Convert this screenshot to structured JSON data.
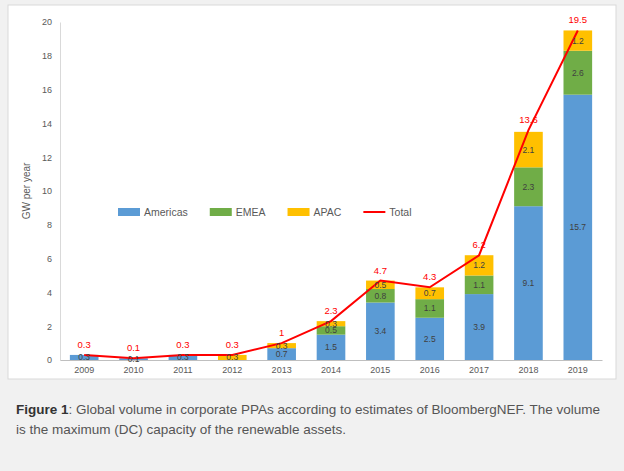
{
  "chart_data": {
    "type": "bar",
    "stacked": true,
    "data_labels": true,
    "grid": false,
    "y_label": "GW per year",
    "caption_label": "Figure 1",
    "caption": ": Global volume in corporate PPAs according to estimates of BloombergNEF. The volume is the maximum (DC) capacity of the renewable assets.",
    "categories": [
      "2009",
      "2010",
      "2011",
      "2012",
      "2013",
      "2014",
      "2015",
      "2016",
      "2017",
      "2018",
      "2019"
    ],
    "ylim": [
      0,
      20
    ],
    "yticks": [
      0,
      2,
      4,
      6,
      8,
      10,
      12,
      14,
      16,
      18,
      20
    ],
    "legend": "left",
    "series": [
      {
        "name": "Americas",
        "type": "bar",
        "color": "#5b9bd5",
        "values": [
          0.3,
          0.1,
          0.3,
          null,
          0.7,
          1.5,
          3.4,
          2.5,
          3.9,
          9.1,
          15.7
        ]
      },
      {
        "name": "EMEA",
        "type": "bar",
        "color": "#70ad47",
        "values": [
          null,
          null,
          null,
          null,
          null,
          0.5,
          0.8,
          1.1,
          1.1,
          2.3,
          2.6
        ]
      },
      {
        "name": "APAC",
        "type": "bar",
        "color": "#ffc000",
        "values": [
          null,
          null,
          null,
          0.3,
          0.3,
          0.3,
          0.5,
          0.7,
          1.2,
          2.1,
          1.2
        ]
      },
      {
        "name": "Total",
        "type": "line",
        "color": "#ff0000",
        "values": [
          0.3,
          0.1,
          0.3,
          0.3,
          1.0,
          2.3,
          4.7,
          4.3,
          6.2,
          13.6,
          19.5
        ]
      }
    ]
  }
}
